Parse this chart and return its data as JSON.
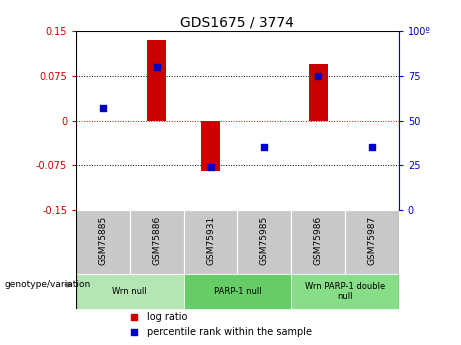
{
  "title": "GDS1675 / 3774",
  "samples": [
    "GSM75885",
    "GSM75886",
    "GSM75931",
    "GSM75985",
    "GSM75986",
    "GSM75987"
  ],
  "log_ratio": [
    0.0,
    0.135,
    -0.085,
    0.0,
    0.095,
    0.0
  ],
  "percentile_rank": [
    57,
    80,
    24,
    35,
    75,
    35
  ],
  "ylim_left": [
    -0.15,
    0.15
  ],
  "ylim_right": [
    0,
    100
  ],
  "yticks_left": [
    -0.15,
    -0.075,
    0,
    0.075,
    0.15
  ],
  "yticks_right": [
    0,
    25,
    50,
    75,
    100
  ],
  "hlines": [
    0.075,
    -0.075
  ],
  "bar_color": "#cc0000",
  "dot_color": "#0000cc",
  "bar_width": 0.35,
  "groups": [
    {
      "label": "Wrn null",
      "samples": [
        0,
        1
      ],
      "color": "#b3e6b3"
    },
    {
      "label": "PARP-1 null",
      "samples": [
        2,
        3
      ],
      "color": "#66cc66"
    },
    {
      "label": "Wrn PARP-1 double\nnull",
      "samples": [
        4,
        5
      ],
      "color": "#88dd88"
    }
  ],
  "left_axis_color": "#cc0000",
  "right_axis_color": "#0000cc",
  "legend_log_ratio": "log ratio",
  "legend_percentile": "percentile rank within the sample",
  "genotype_label": "genotype/variation"
}
